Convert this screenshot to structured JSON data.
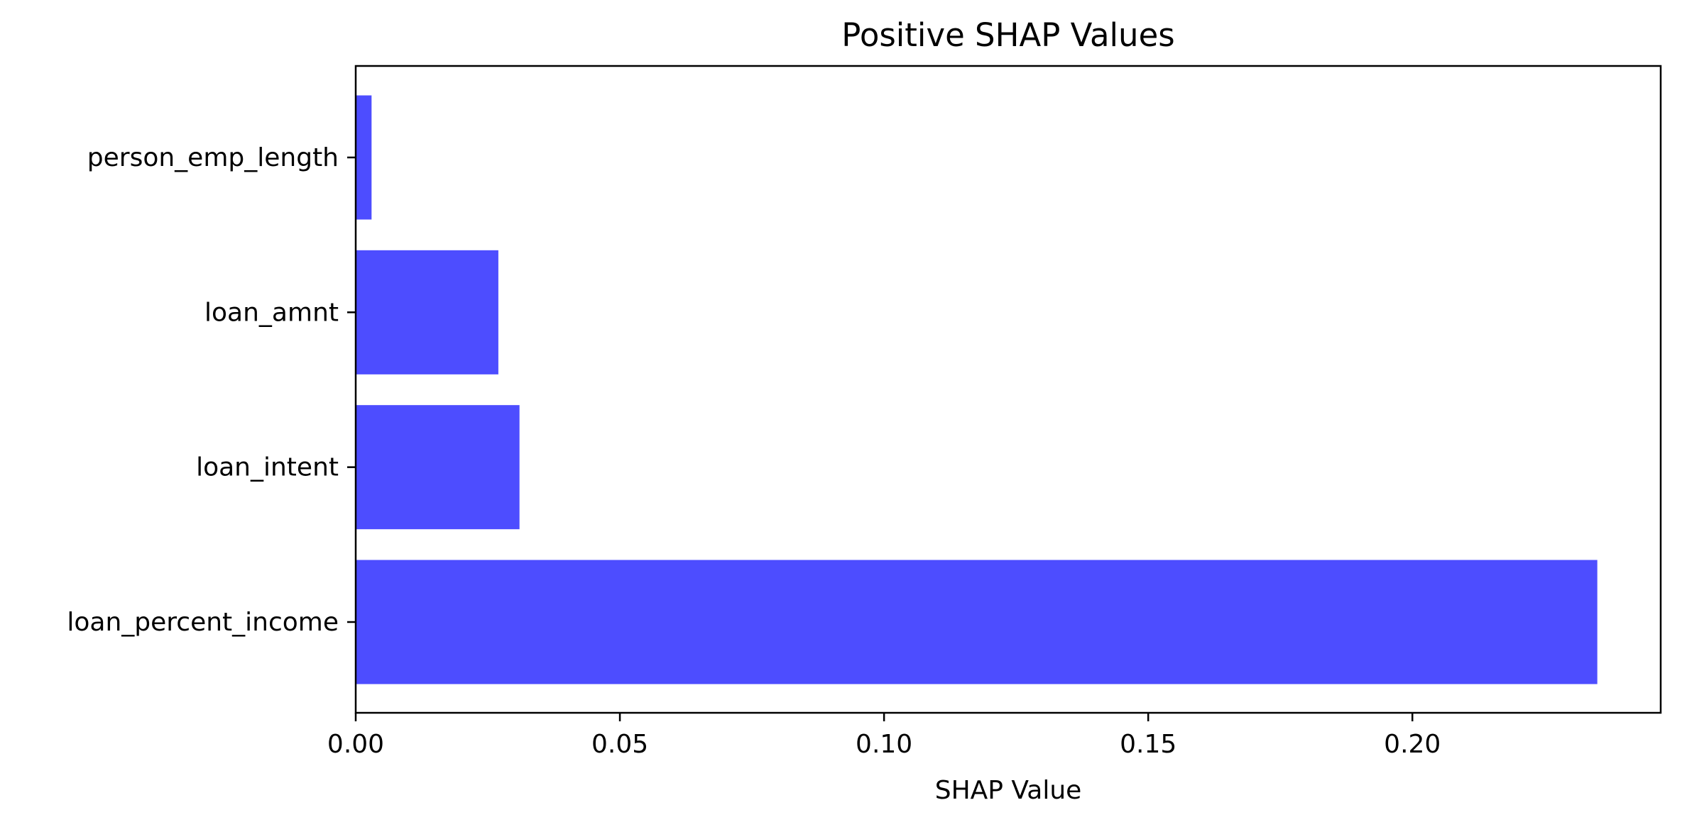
{
  "chart_data": {
    "type": "bar",
    "orientation": "horizontal",
    "title": "Positive SHAP Values",
    "xlabel": "SHAP Value",
    "ylabel": "",
    "categories": [
      "person_emp_length",
      "loan_amnt",
      "loan_intent",
      "loan_percent_income"
    ],
    "values": [
      0.003,
      0.027,
      0.031,
      0.235
    ],
    "xlim": [
      0,
      0.247
    ],
    "xticks": [
      0.0,
      0.05,
      0.1,
      0.15,
      0.2
    ],
    "xtick_labels": [
      "0.00",
      "0.05",
      "0.10",
      "0.15",
      "0.20"
    ],
    "grid": false,
    "bar_color": "#4d4dff"
  }
}
